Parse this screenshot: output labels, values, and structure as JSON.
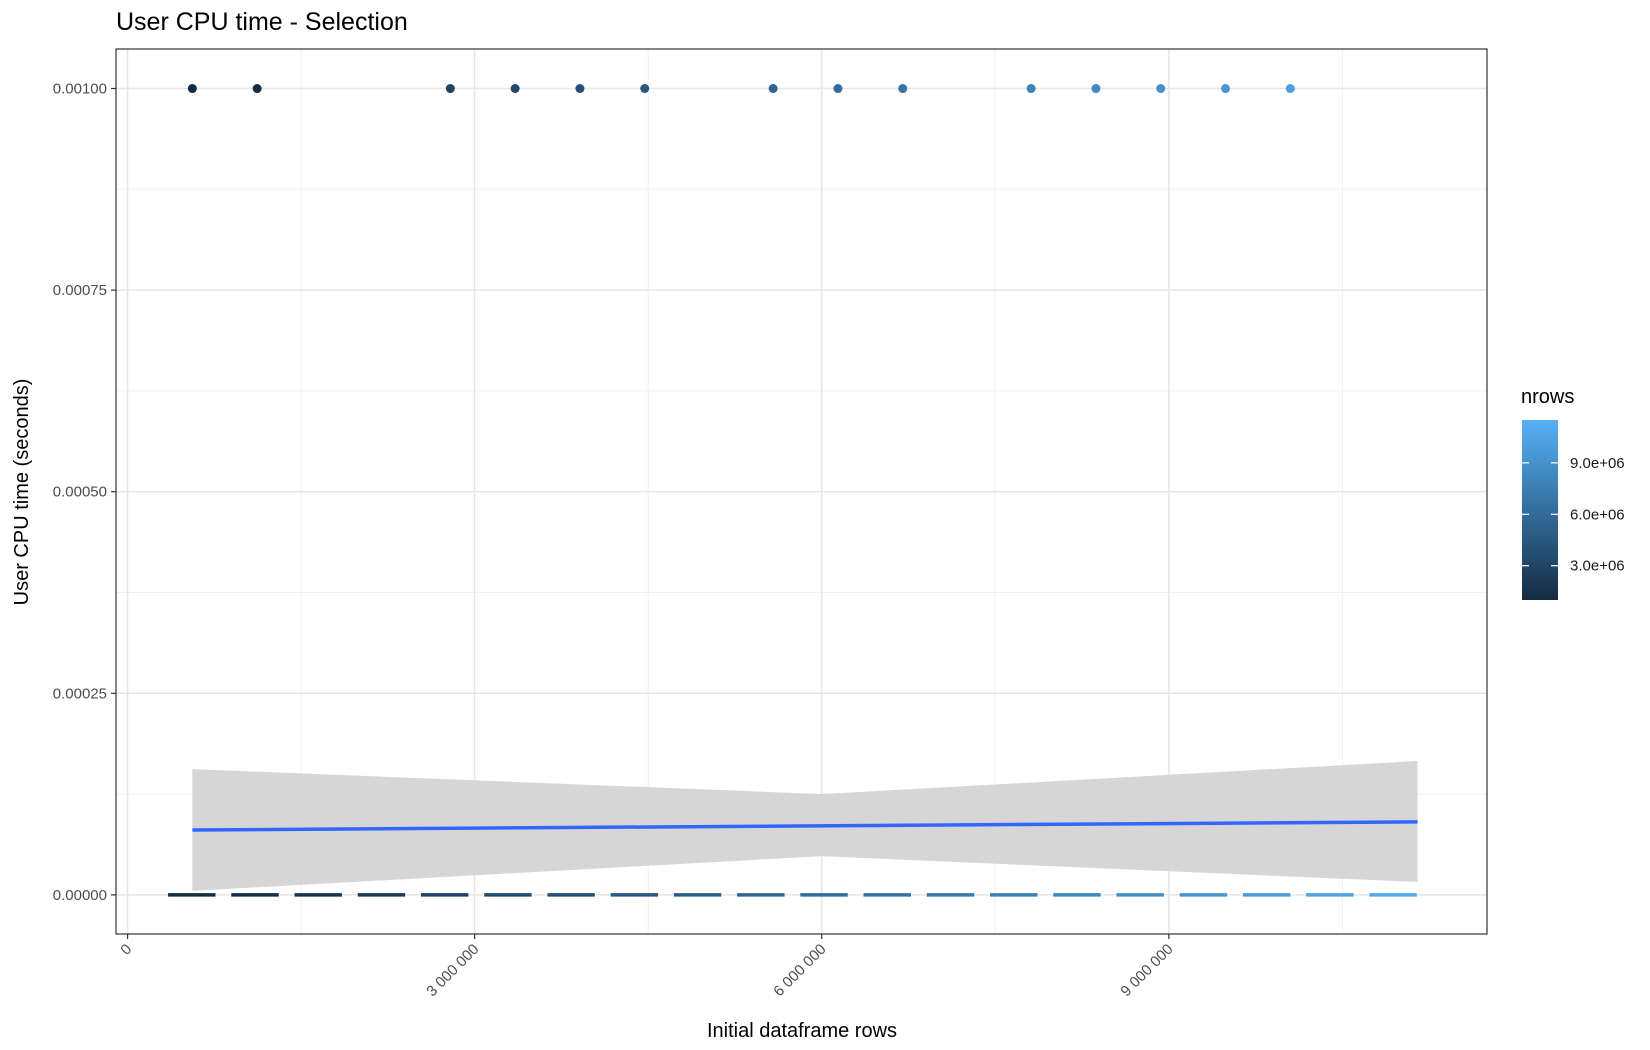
{
  "chart_data": {
    "type": "scatter",
    "title": "User CPU time - Selection",
    "xlabel": "Initial dataframe rows",
    "ylabel": "User CPU time (seconds)",
    "xlim": [
      -100000,
      11750000
    ],
    "ylim": [
      -4.85e-05,
      0.001049
    ],
    "x_ticks": [
      0,
      3000000,
      6000000,
      9000000
    ],
    "x_tick_labels": [
      "0",
      "3 000 000",
      "6 000 000",
      "9 000 000"
    ],
    "y_ticks": [
      0,
      0.00025,
      0.0005,
      0.00075,
      0.001
    ],
    "y_tick_labels": [
      "0.00000",
      "0.00025",
      "0.00050",
      "0.00075",
      "0.00100"
    ],
    "grid": true,
    "points": {
      "x": [
        560000,
        1120000,
        2790000,
        3350000,
        3910000,
        4470000,
        5580000,
        6140000,
        6700000,
        7810000,
        8370000,
        8930000,
        9490000,
        10050000
      ],
      "y": [
        0.001,
        0.001,
        0.001,
        0.001,
        0.001,
        0.001,
        0.001,
        0.001,
        0.001,
        0.001,
        0.001,
        0.001,
        0.001,
        0.001
      ],
      "nrows": [
        560000,
        1120000,
        2790000,
        3350000,
        3910000,
        4470000,
        5580000,
        6140000,
        6700000,
        7810000,
        8370000,
        8930000,
        9490000,
        10050000
      ]
    },
    "trend_line": {
      "x": [
        560000,
        11150000
      ],
      "y": [
        8.05e-05,
        9.05e-05
      ],
      "color": "#3366ff"
    },
    "confidence_band": {
      "x": [
        560000,
        6000000,
        11150000
      ],
      "upper": [
        0.000156,
        0.000125,
        0.000166
      ],
      "lower": [
        5e-06,
        4.8e-05,
        1.6e-05
      ],
      "color": "#d4d4d4"
    },
    "dashed_line": {
      "x_start": 350000,
      "x_end": 11280000,
      "y": 0,
      "segments": 20
    },
    "legend": {
      "title": "nrows",
      "placement": "right",
      "range": [
        1000000,
        11500000
      ],
      "ticks": [
        3000000,
        6000000,
        9000000
      ],
      "tick_labels": [
        "3.0e+06",
        "6.0e+06",
        "9.0e+06"
      ],
      "color_low": "#132b43",
      "color_high": "#56b1f7"
    }
  }
}
